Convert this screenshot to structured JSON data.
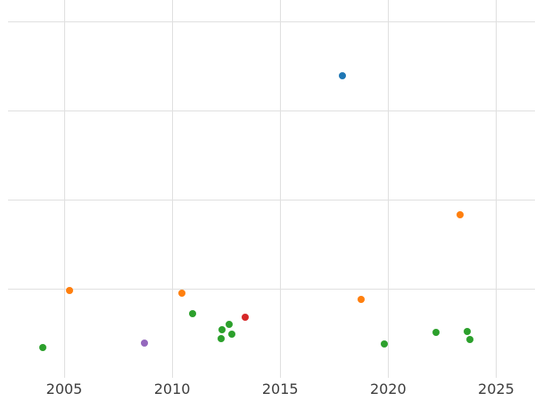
{
  "chart_data": {
    "type": "scatter",
    "title": "",
    "xlabel": "",
    "ylabel": "",
    "grid": true,
    "legend": false,
    "y_tick_labels_visible": false,
    "x_ticks": [
      2005,
      2010,
      2015,
      2020,
      2025
    ],
    "x_tick_labels": [
      "2005",
      "2010",
      "2015",
      "2020",
      "2025"
    ],
    "xlim": [
      2002.4,
      2026.8
    ],
    "ylim": [
      0,
      4.24
    ],
    "y_gridlines": [
      1,
      2,
      3,
      4
    ],
    "colors": {
      "blue": "#1f77b4",
      "orange": "#ff7f0e",
      "green": "#2ca02c",
      "red": "#d62728",
      "purple": "#9467bd",
      "gridline": "#e0e0e0",
      "tick_label": "#3d3d3d"
    },
    "series": [
      {
        "name": "blue",
        "color": "#1f77b4",
        "points": [
          [
            2017.9,
            3.39
          ]
        ]
      },
      {
        "name": "orange",
        "color": "#ff7f0e",
        "points": [
          [
            2005.25,
            0.98
          ],
          [
            2010.45,
            0.95
          ],
          [
            2018.75,
            0.88
          ],
          [
            2023.35,
            1.83
          ]
        ]
      },
      {
        "name": "green",
        "color": "#2ca02c",
        "points": [
          [
            2004.0,
            0.34
          ],
          [
            2010.95,
            0.72
          ],
          [
            2012.3,
            0.54
          ],
          [
            2012.25,
            0.44
          ],
          [
            2012.65,
            0.6
          ],
          [
            2012.75,
            0.49
          ],
          [
            2019.8,
            0.38
          ],
          [
            2022.2,
            0.51
          ],
          [
            2023.65,
            0.52
          ],
          [
            2023.8,
            0.43
          ]
        ]
      },
      {
        "name": "red",
        "color": "#d62728",
        "points": [
          [
            2013.4,
            0.68
          ]
        ]
      },
      {
        "name": "purple",
        "color": "#9467bd",
        "points": [
          [
            2008.7,
            0.39
          ]
        ]
      }
    ]
  }
}
